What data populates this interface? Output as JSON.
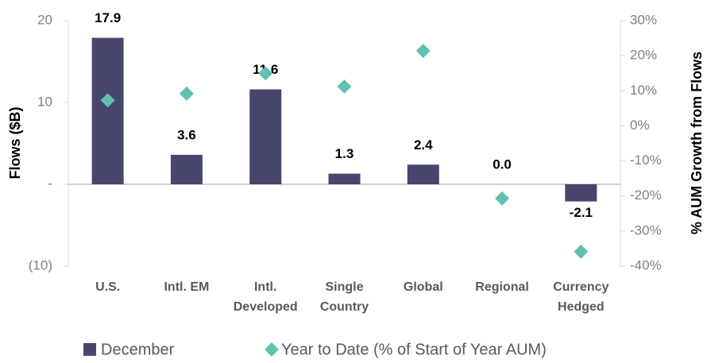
{
  "chart_data": {
    "type": "bar",
    "categories": [
      "U.S.",
      "Intl. EM",
      "Intl.\nDeveloped",
      "Single\nCountry",
      "Global",
      "Regional",
      "Currency\nHedged"
    ],
    "series": [
      {
        "name": "December",
        "color": "#46466e",
        "values": [
          17.9,
          3.6,
          11.6,
          1.3,
          2.4,
          0.0,
          -2.1
        ],
        "value_labels": [
          "17.9",
          "3.6",
          "11.6",
          "1.3",
          "2.4",
          "0.0",
          "-2.1"
        ]
      },
      {
        "name": "Year to Date (% of Start of Year AUM)",
        "color": "#62bfb4",
        "axis": "y2",
        "marker": "diamond",
        "values": [
          7.3,
          9.2,
          15.0,
          11.2,
          21.4,
          -20.7,
          -35.9
        ]
      }
    ],
    "ylabel": "Flows ($B)",
    "y2label": "% AUM Growth from Flows",
    "ylim": [
      -10,
      20
    ],
    "yticks": [
      20,
      10,
      {
        "value": 0,
        "label": "-"
      },
      {
        "value": -10,
        "label": "(10)"
      }
    ],
    "y2lim": [
      -40,
      30
    ],
    "y2ticks": [
      {
        "value": 30,
        "label": "30%"
      },
      {
        "value": 20,
        "label": "20%"
      },
      {
        "value": 10,
        "label": "10%"
      },
      {
        "value": 0,
        "label": "0%"
      },
      {
        "value": -10,
        "label": "-10%"
      },
      {
        "value": -20,
        "label": "-20%"
      },
      {
        "value": -30,
        "label": "-30%"
      },
      {
        "value": -40,
        "label": "-40%"
      }
    ],
    "legend": "bottom"
  }
}
